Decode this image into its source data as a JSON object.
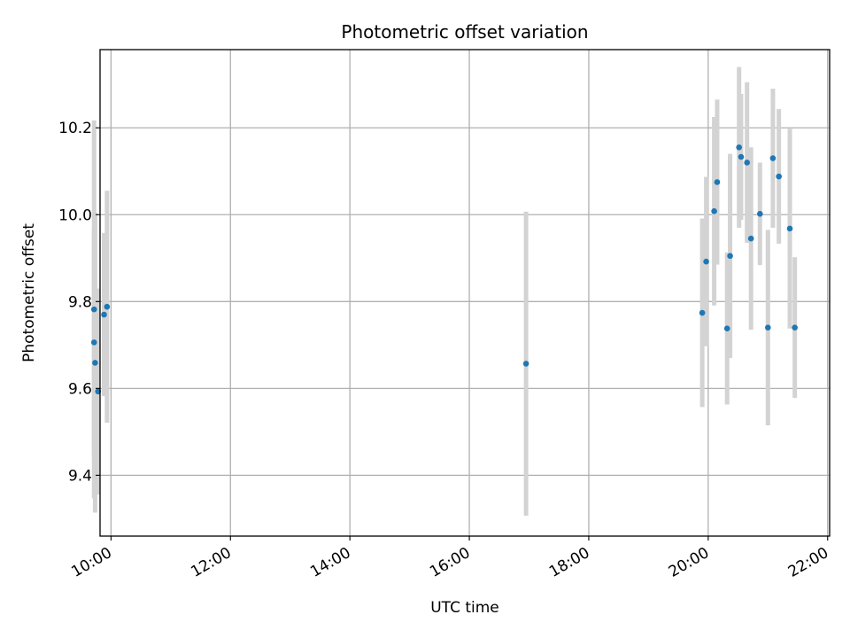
{
  "chart_data": {
    "type": "scatter",
    "title": "Photometric offset variation",
    "xlabel": "UTC time",
    "ylabel": "Photometric offset",
    "x_ticks": [
      "10:00",
      "12:00",
      "14:00",
      "16:00",
      "18:00",
      "20:00",
      "22:00"
    ],
    "y_ticks": [
      "9.4",
      "9.6",
      "9.8",
      "10.0",
      "10.2"
    ],
    "xlim": [
      "09:49",
      "22:02"
    ],
    "ylim": [
      9.26,
      10.38
    ],
    "grid": true,
    "series": [
      {
        "marker_color": "#1f77b4",
        "errorbar_color": "#d3d3d3",
        "points": [
          {
            "x": "09:43",
            "y": 9.782,
            "err": 0.435
          },
          {
            "x": "09:43",
            "y": 9.706,
            "err": 0.26
          },
          {
            "x": "09:44",
            "y": 9.659,
            "err": 0.345
          },
          {
            "x": "09:47",
            "y": 9.593,
            "err": 0.237
          },
          {
            "x": "09:53",
            "y": 9.77,
            "err": 0.188
          },
          {
            "x": "09:56",
            "y": 9.788,
            "err": 0.267
          },
          {
            "x": "16:57",
            "y": 9.657,
            "err": 0.35
          },
          {
            "x": "19:54",
            "y": 9.774,
            "err": 0.217
          },
          {
            "x": "19:58",
            "y": 9.892,
            "err": 0.195
          },
          {
            "x": "20:06",
            "y": 10.008,
            "err": 0.217
          },
          {
            "x": "20:09",
            "y": 10.075,
            "err": 0.19
          },
          {
            "x": "20:19",
            "y": 9.738,
            "err": 0.175
          },
          {
            "x": "20:22",
            "y": 9.905,
            "err": 0.235
          },
          {
            "x": "20:31",
            "y": 10.155,
            "err": 0.185
          },
          {
            "x": "20:33",
            "y": 10.133,
            "err": 0.145
          },
          {
            "x": "20:39",
            "y": 10.12,
            "err": 0.185
          },
          {
            "x": "20:43",
            "y": 9.945,
            "err": 0.21
          },
          {
            "x": "20:52",
            "y": 10.002,
            "err": 0.118
          },
          {
            "x": "21:00",
            "y": 9.74,
            "err": 0.225
          },
          {
            "x": "21:05",
            "y": 10.13,
            "err": 0.16
          },
          {
            "x": "21:11",
            "y": 10.088,
            "err": 0.155
          },
          {
            "x": "21:22",
            "y": 9.968,
            "err": 0.23
          },
          {
            "x": "21:27",
            "y": 9.74,
            "err": 0.162
          }
        ]
      }
    ]
  }
}
